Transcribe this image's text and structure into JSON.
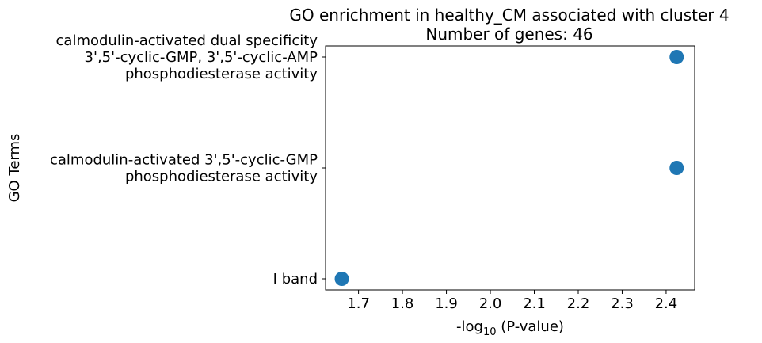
{
  "chart_data": {
    "type": "scatter",
    "title": [
      "GO enrichment in healthy_CM associated with cluster 4",
      "Number of genes: 46"
    ],
    "xlabel": {
      "prefix": "-log",
      "subscript": "10",
      "suffix": " (P-value)"
    },
    "ylabel": "GO Terms",
    "xlim": [
      1.625,
      2.465
    ],
    "xticks": [
      1.7,
      1.8,
      1.9,
      2.0,
      2.1,
      2.2,
      2.3,
      2.4
    ],
    "categories": [
      [
        "I band"
      ],
      [
        "calmodulin-activated 3',5'-cyclic-GMP",
        "phosphodiesterase activity"
      ],
      [
        "calmodulin-activated dual specificity",
        "3',5'-cyclic-GMP, 3',5'-cyclic-AMP",
        "phosphodiesterase activity"
      ]
    ],
    "points": [
      {
        "category_index": 0,
        "x": 1.662
      },
      {
        "category_index": 1,
        "x": 2.424
      },
      {
        "category_index": 2,
        "x": 2.424
      }
    ],
    "marker_color": "#1f77b4",
    "grid": false,
    "legend": "none"
  }
}
